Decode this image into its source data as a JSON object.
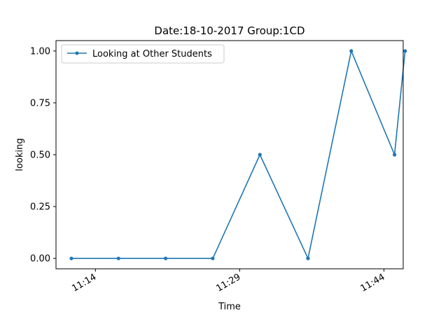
{
  "chart_data": {
    "type": "line",
    "title": "Date:18-10-2017  Group:1CD",
    "xlabel": "Time",
    "ylabel": "looking",
    "x_ticks": [
      "11:14",
      "11:29",
      "11:44"
    ],
    "x_tick_minutes": [
      674,
      689,
      704
    ],
    "xlim_minutes": [
      669.9,
      706.0
    ],
    "y_ticks": [
      "0.00",
      "0.25",
      "0.50",
      "0.75",
      "1.00"
    ],
    "y_tick_values": [
      0.0,
      0.25,
      0.5,
      0.75,
      1.0
    ],
    "ylim": [
      -0.05,
      1.05
    ],
    "grid": false,
    "legend_position": "top-left",
    "series": [
      {
        "name": "Looking at Other Students",
        "color": "#1f77b4",
        "marker": "dot",
        "x_minutes": [
          671.5,
          676.4,
          681.3,
          686.2,
          691.1,
          696.1,
          700.6,
          705.1,
          706.2
        ],
        "values": [
          0.0,
          0.0,
          0.0,
          0.0,
          0.5,
          0.0,
          1.0,
          0.5,
          1.0
        ]
      }
    ]
  }
}
